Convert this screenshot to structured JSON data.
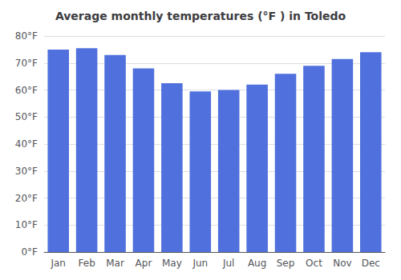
{
  "chart_data": {
    "type": "bar",
    "title": "Average monthly temperatures (°F ) in Toledo",
    "categories": [
      "Jan",
      "Feb",
      "Mar",
      "Apr",
      "May",
      "Jun",
      "Jul",
      "Aug",
      "Sep",
      "Oct",
      "Nov",
      "Dec"
    ],
    "values": [
      75,
      75.5,
      73,
      68,
      62.5,
      59.5,
      60,
      62,
      66,
      69,
      71.5,
      74
    ],
    "ylim": [
      0,
      80
    ],
    "yticks": [
      {
        "value": 0,
        "label": "0°F"
      },
      {
        "value": 10,
        "label": "10°F"
      },
      {
        "value": 20,
        "label": "20°F"
      },
      {
        "value": 30,
        "label": "30°F"
      },
      {
        "value": 40,
        "label": "40°F"
      },
      {
        "value": 50,
        "label": "50°F"
      },
      {
        "value": 60,
        "label": "60°F"
      },
      {
        "value": 70,
        "label": "70°F"
      },
      {
        "value": 80,
        "label": "80°F"
      }
    ],
    "grid": true
  }
}
